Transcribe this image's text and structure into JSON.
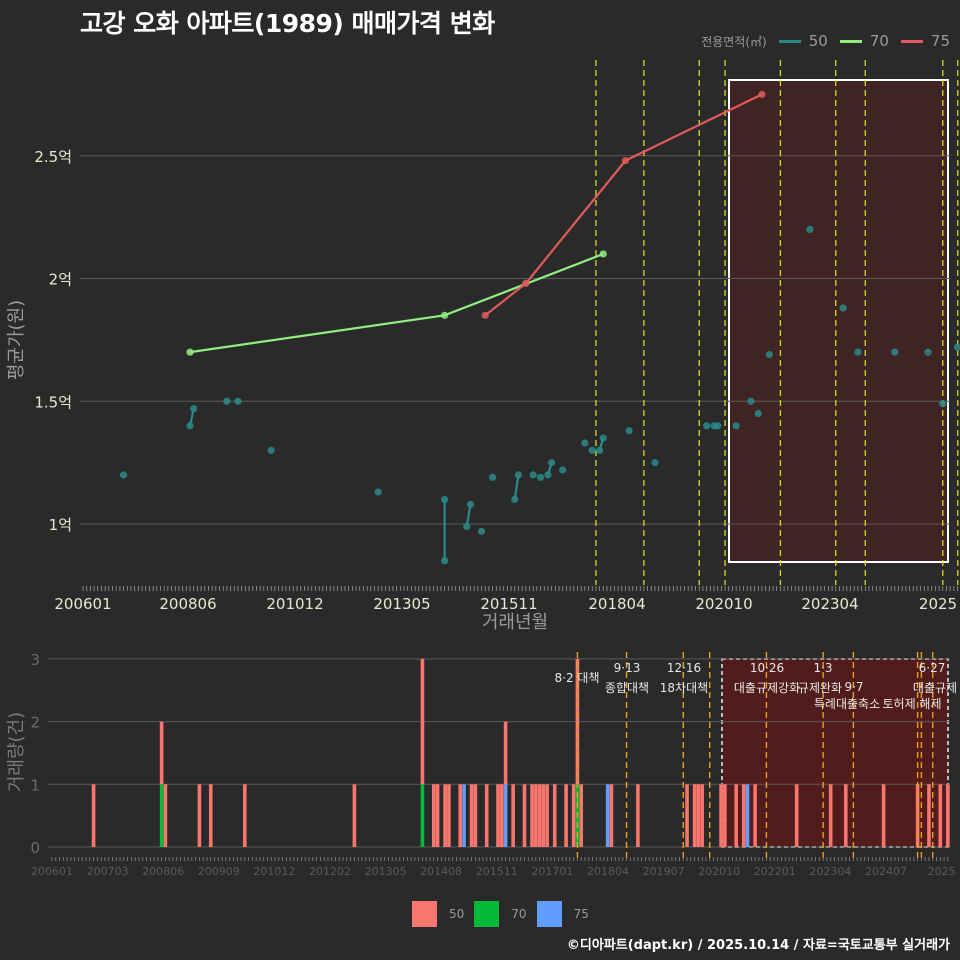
{
  "title": "고강 오화 아파트(1989) 매매가격 변화",
  "legend_top": {
    "label": "전용면적(㎡)",
    "items": [
      {
        "label": "50",
        "color": "#2a8a8a"
      },
      {
        "label": "70",
        "color": "#90ee80"
      },
      {
        "label": "75",
        "color": "#e05a5a"
      }
    ]
  },
  "legend_bottom": {
    "items": [
      {
        "label": "50",
        "color": "#f8766d"
      },
      {
        "label": "70",
        "color": "#00ba38"
      },
      {
        "label": "75",
        "color": "#619cff"
      }
    ]
  },
  "credit": "©디아파트(dapt.kr) / 2025.10.14 / 자료=국토교통부 실거래가",
  "chart_data": [
    {
      "type": "line",
      "title": "고강 오화 아파트(1989) 매매가격 변화",
      "xlabel": "거래년월",
      "ylabel": "평균가(원)",
      "x_ticks": [
        "200601",
        "200806",
        "201012",
        "201305",
        "201511",
        "201804",
        "202010",
        "202304",
        "2025"
      ],
      "y_ticks": [
        "1억",
        "1.5억",
        "2억",
        "2.5억"
      ],
      "ylim": [
        0.85,
        2.8
      ],
      "grid": true,
      "legend_position": "top-right",
      "highlight_box": {
        "from": "2021-01",
        "to": "2025-10"
      },
      "policy_lines": [
        "2017-08",
        "2018-09",
        "2019-12",
        "2020-07",
        "2021-10",
        "2023-01",
        "2023-09",
        "2025-06",
        "2025-06"
      ],
      "series": [
        {
          "name": "50",
          "color": "#2a8a8a",
          "points": [
            [
              "2006-12",
              1.2
            ],
            [
              "2008-06",
              1.4
            ],
            [
              "2008-07",
              1.47
            ],
            [
              "2009-04",
              1.5
            ],
            [
              "2009-07",
              1.5
            ],
            [
              "2010-04",
              1.3
            ],
            [
              "2012-09",
              1.13
            ],
            [
              "2014-03",
              1.1
            ],
            [
              "2014-03",
              0.85
            ],
            [
              "2014-09",
              0.99
            ],
            [
              "2014-10",
              1.08
            ],
            [
              "2015-01",
              0.97
            ],
            [
              "2015-04",
              1.19
            ],
            [
              "2015-10",
              1.1
            ],
            [
              "2015-11",
              1.2
            ],
            [
              "2016-03",
              1.2
            ],
            [
              "2016-05",
              1.19
            ],
            [
              "2016-07",
              1.2
            ],
            [
              "2016-08",
              1.25
            ],
            [
              "2016-11",
              1.22
            ],
            [
              "2017-05",
              1.33
            ],
            [
              "2017-07",
              1.3
            ],
            [
              "2017-09",
              1.3
            ],
            [
              "2017-10",
              1.35
            ],
            [
              "2018-05",
              1.38
            ],
            [
              "2018-12",
              1.25
            ],
            [
              "2020-02",
              1.4
            ],
            [
              "2020-04",
              1.4
            ],
            [
              "2020-05",
              1.4
            ],
            [
              "2020-10",
              1.4
            ],
            [
              "2021-02",
              1.5
            ],
            [
              "2021-04",
              1.45
            ],
            [
              "2021-07",
              1.69
            ],
            [
              "2022-06",
              2.2
            ],
            [
              "2023-03",
              1.88
            ],
            [
              "2023-07",
              1.7
            ],
            [
              "2024-05",
              1.7
            ],
            [
              "2025-02",
              1.7
            ],
            [
              "2025-06",
              1.49
            ],
            [
              "2025-10",
              1.72
            ]
          ]
        },
        {
          "name": "70",
          "color": "#90ee80",
          "points": [
            [
              "2008-06",
              1.7
            ],
            [
              "2014-03",
              1.85
            ],
            [
              "2017-10",
              2.1
            ]
          ]
        },
        {
          "name": "75",
          "color": "#e05a5a",
          "points": [
            [
              "2015-02",
              1.85
            ],
            [
              "2016-01",
              1.98
            ],
            [
              "2018-04",
              2.48
            ],
            [
              "2021-05",
              2.75
            ]
          ]
        }
      ]
    },
    {
      "type": "bar",
      "xlabel": "",
      "ylabel": "거래량(건)",
      "x_ticks": [
        "200601",
        "200703",
        "200806",
        "200909",
        "201012",
        "201202",
        "201305",
        "201408",
        "201511",
        "201701",
        "201804",
        "201907",
        "202010",
        "202201",
        "202304",
        "202407",
        "2025"
      ],
      "y_ticks": [
        "0",
        "1",
        "2",
        "3"
      ],
      "ylim": [
        0,
        3
      ],
      "stacked": true,
      "highlight_box": {
        "from": "2020-10",
        "to": "2025-10"
      },
      "policy_annotations": [
        {
          "month": "2017-08",
          "date": "8·2 대책",
          "label": ""
        },
        {
          "month": "2018-09",
          "date": "9·13",
          "label": "종합대책"
        },
        {
          "month": "2019-12",
          "date": "12·16",
          "label": "18차대책"
        },
        {
          "month": "2021-10",
          "date": "10·26",
          "label": "대출규제강화"
        },
        {
          "month": "2023-01",
          "date": "1·3",
          "label": "규제완화"
        },
        {
          "month": "2023-09",
          "date": "9·7",
          "label": "특례대출축소"
        },
        {
          "month": "2025-02",
          "date": "",
          "label": "토허제 해제"
        },
        {
          "month": "2025-06",
          "date": "6·27",
          "label": "대출규제"
        }
      ],
      "extra_policy_lines": [
        "2020-07",
        "2025-03"
      ],
      "series": [
        {
          "name": "50",
          "color": "#f8766d",
          "bars": [
            [
              "2006-12",
              1
            ],
            [
              "2008-06",
              1
            ],
            [
              "2008-07",
              1
            ],
            [
              "2009-04",
              1
            ],
            [
              "2009-07",
              1
            ],
            [
              "2010-04",
              1
            ],
            [
              "2012-09",
              1
            ],
            [
              "2014-03",
              2
            ],
            [
              "2014-06",
              1
            ],
            [
              "2014-07",
              1
            ],
            [
              "2014-09",
              1
            ],
            [
              "2014-10",
              1
            ],
            [
              "2015-01",
              1
            ],
            [
              "2015-04",
              1
            ],
            [
              "2015-05",
              1
            ],
            [
              "2015-08",
              1
            ],
            [
              "2015-11",
              1
            ],
            [
              "2015-12",
              1
            ],
            [
              "2016-01",
              1
            ],
            [
              "2016-03",
              1
            ],
            [
              "2016-06",
              1
            ],
            [
              "2016-08",
              1
            ],
            [
              "2016-09",
              1
            ],
            [
              "2016-10",
              1
            ],
            [
              "2016-11",
              1
            ],
            [
              "2016-12",
              1
            ],
            [
              "2017-02",
              1
            ],
            [
              "2017-05",
              1
            ],
            [
              "2017-07",
              1
            ],
            [
              "2017-08",
              2
            ],
            [
              "2017-09",
              1
            ],
            [
              "2018-05",
              1
            ],
            [
              "2018-12",
              1
            ],
            [
              "2020-01",
              1
            ],
            [
              "2020-03",
              1
            ],
            [
              "2020-04",
              1
            ],
            [
              "2020-05",
              1
            ],
            [
              "2020-10",
              1
            ],
            [
              "2020-11",
              1
            ],
            [
              "2021-02",
              1
            ],
            [
              "2021-04",
              1
            ],
            [
              "2021-07",
              1
            ],
            [
              "2022-06",
              1
            ],
            [
              "2023-03",
              1
            ],
            [
              "2023-07",
              1
            ],
            [
              "2024-05",
              1
            ],
            [
              "2025-02",
              1
            ],
            [
              "2025-05",
              1
            ],
            [
              "2025-08",
              1
            ],
            [
              "2025-10",
              1
            ]
          ]
        },
        {
          "name": "70",
          "color": "#00ba38",
          "bars": [
            [
              "2008-06",
              1
            ],
            [
              "2014-03",
              1
            ],
            [
              "2017-08",
              1
            ]
          ]
        },
        {
          "name": "75",
          "color": "#619cff",
          "bars": [
            [
              "2015-02",
              1
            ],
            [
              "2016-01",
              1
            ],
            [
              "2018-04",
              1
            ],
            [
              "2021-05",
              1
            ]
          ]
        }
      ]
    }
  ]
}
